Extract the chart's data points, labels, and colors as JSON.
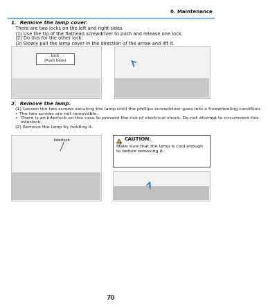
{
  "page_number": "70",
  "header_text": "6. Maintenance",
  "header_line_color": "#5aa0c8",
  "background_color": "#ffffff",
  "section1_title": "1.  Remove the lamp cover.",
  "section1_subtitle": "   There are two locks on the left and right sides.",
  "section1_items": [
    "   (1) Use the tip of the flathead screwdriver to push and release one lock.",
    "   (2) Do this for the other lock.",
    "   (3) Slowly pull the lamp cover in the direction of the arrow and lift it."
  ],
  "section2_title": "2.  Remove the lamp.",
  "section2_line1": "   (1) Loosen the two screws securing the lamp until the phillips screwdriver goes into a freewheeling condition.",
  "section2_bullet1": "   • The two screws are not removable.",
  "section2_bullet2a": "   •  There is an interlock on this case to prevent the risk of electrical shock. Do not attempt to circumvent this",
  "section2_bullet2b": "       interlock.",
  "section2_line2": "   (2) Remove the lamp by holding it.",
  "callout_lock": "Lock\n(Push here)",
  "callout_interlock": "Interlock",
  "caution_title": "CAUTION:",
  "caution_text": "Make sure that the lamp is cool enough\nto before removing it.",
  "text_color": "#1a1a1a",
  "header_color": "#1a1a1a",
  "accent_color": "#3a7fc1",
  "caution_border": "#555555",
  "caution_triangle_fill": "#e8a020",
  "image_area_bg": "#f2f2f2",
  "image_area_border": "#aaaaaa",
  "page_num_color": "#333333"
}
